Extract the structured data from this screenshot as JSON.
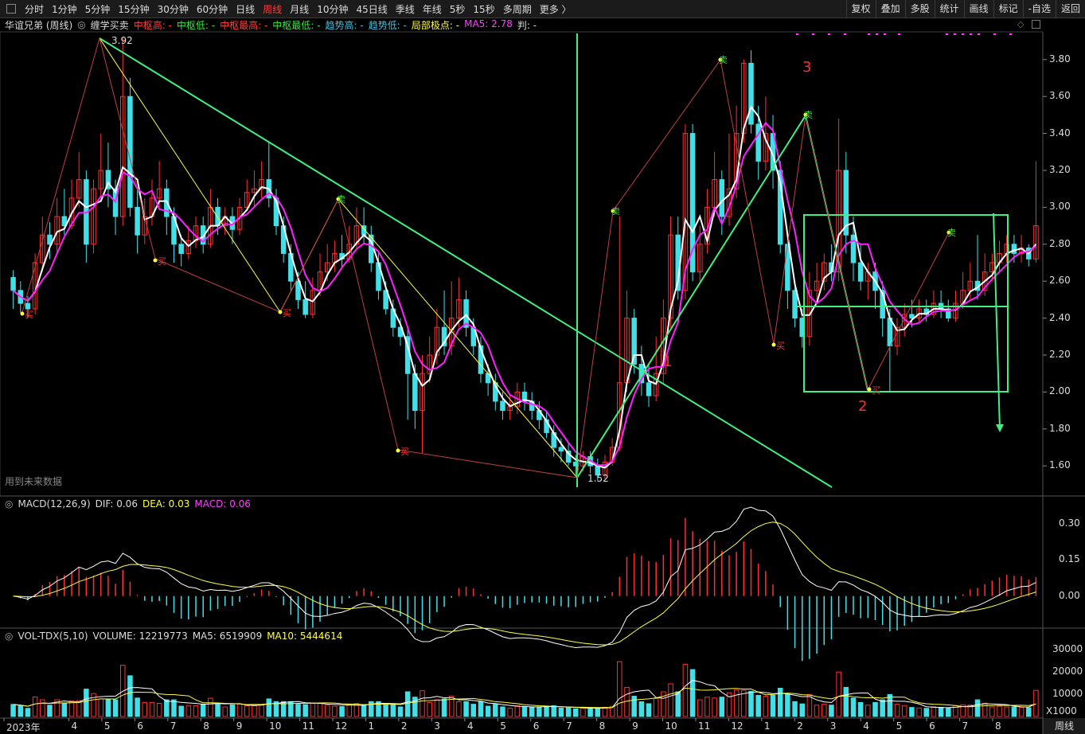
{
  "periods": [
    "分时",
    "1分钟",
    "5分钟",
    "15分钟",
    "30分钟",
    "60分钟",
    "日线",
    "周线",
    "月线",
    "10分钟",
    "45日线",
    "季线",
    "年线",
    "5秒",
    "15秒",
    "多周期",
    "更多 〉"
  ],
  "active_period": "周线",
  "tools": [
    "复权",
    "叠加",
    "多股",
    "统计",
    "画线",
    "标记",
    "-自选",
    "返回"
  ],
  "main_legend": {
    "title": "华谊兄弟 (周线)",
    "indicator": "缠学买卖",
    "items": [
      {
        "text": "中枢高: -",
        "color": "#ff4040"
      },
      {
        "text": "中枢低: -",
        "color": "#40e040"
      },
      {
        "text": "中枢最高: -",
        "color": "#ff4040"
      },
      {
        "text": "中枢最低: -",
        "color": "#40e040"
      },
      {
        "text": "趋势高: -",
        "color": "#40c0e0"
      },
      {
        "text": "趋势低: -",
        "color": "#40c0e0"
      },
      {
        "text": "局部极点: -",
        "color": "#ffff40"
      },
      {
        "text": "MA5: 2.78",
        "color": "#ff40ff"
      },
      {
        "text": "判: -",
        "color": "#dcdcdc"
      }
    ]
  },
  "macd_legend": {
    "title": "MACD(12,26,9)",
    "items": [
      {
        "text": "DIF: 0.06",
        "color": "#dcdcdc"
      },
      {
        "text": "DEA: 0.03",
        "color": "#ffff40"
      },
      {
        "text": "MACD: 0.06",
        "color": "#ff40ff"
      }
    ]
  },
  "vol_legend": {
    "title": "VOL-TDX(5,10)",
    "items": [
      {
        "text": "VOLUME: 12219773",
        "color": "#dcdcdc"
      },
      {
        "text": "MA5: 6519909",
        "color": "#dcdcdc"
      },
      {
        "text": "MA10: 5444614",
        "color": "#ffff40"
      }
    ]
  },
  "watermark": "用到未来数据",
  "price_axis": [
    "3.80",
    "3.60",
    "3.40",
    "3.20",
    "3.00",
    "2.80",
    "2.60",
    "2.40",
    "2.20",
    "2.00",
    "1.80",
    "1.60"
  ],
  "macd_axis": [
    "0.30",
    "0.15",
    "0.00"
  ],
  "vol_axis": [
    "30000",
    "20000",
    "10000"
  ],
  "vol_unit": "X1000",
  "x_labels": [
    "2023年",
    "4",
    "5",
    "6",
    "7",
    "8",
    "9",
    "10",
    "11",
    "12",
    "1",
    "2",
    "3",
    "4",
    "5",
    "6",
    "7",
    "8",
    "9",
    "10",
    "11",
    "12",
    "1",
    "2",
    "3",
    "4",
    "5",
    "6",
    "7",
    "8"
  ],
  "annotations": {
    "high": "3.92",
    "low": "1.52",
    "n1": "1",
    "n2": "2",
    "n3": "3",
    "buy": "买",
    "sell": "卖"
  },
  "bottom_button": "周线",
  "colors": {
    "up": "#ff3030",
    "down": "#40e0e8",
    "ma_white": "#ffffff",
    "ma_magenta": "#ff20ff",
    "trend": "#40f080",
    "signal": "#ffff40"
  },
  "chart_data": {
    "type": "candlestick",
    "price_range": [
      1.45,
      3.95
    ],
    "candles": [
      [
        2.62,
        2.55,
        2.66,
        2.45
      ],
      [
        2.55,
        2.48,
        2.6,
        2.43
      ],
      [
        2.48,
        2.45,
        2.52,
        2.4
      ],
      [
        2.45,
        2.7,
        2.75,
        2.42
      ],
      [
        2.7,
        2.85,
        2.95,
        2.65
      ],
      [
        2.85,
        2.8,
        2.92,
        2.72
      ],
      [
        2.8,
        2.95,
        3.05,
        2.75
      ],
      [
        2.95,
        2.9,
        3.1,
        2.85
      ],
      [
        2.9,
        3.05,
        3.15,
        2.88
      ],
      [
        3.05,
        3.15,
        3.3,
        3.0
      ],
      [
        3.15,
        2.8,
        3.2,
        2.7
      ],
      [
        2.8,
        3.1,
        3.15,
        2.75
      ],
      [
        3.1,
        3.2,
        3.4,
        3.05
      ],
      [
        3.2,
        3.1,
        3.35,
        3.0
      ],
      [
        3.1,
        2.95,
        3.15,
        2.85
      ],
      [
        2.95,
        3.6,
        3.92,
        2.9
      ],
      [
        3.6,
        3.0,
        3.7,
        2.95
      ],
      [
        3.0,
        2.85,
        3.1,
        2.75
      ],
      [
        2.85,
        2.95,
        3.05,
        2.8
      ],
      [
        2.95,
        3.05,
        3.15,
        2.9
      ],
      [
        3.05,
        3.1,
        3.25,
        3.0
      ],
      [
        3.1,
        2.95,
        3.15,
        2.85
      ],
      [
        2.95,
        2.8,
        3.0,
        2.7
      ],
      [
        2.8,
        2.75,
        2.85,
        2.68
      ],
      [
        2.75,
        2.82,
        2.9,
        2.72
      ],
      [
        2.82,
        2.9,
        2.95,
        2.78
      ],
      [
        2.9,
        2.8,
        2.95,
        2.75
      ],
      [
        2.8,
        3.0,
        3.1,
        2.78
      ],
      [
        3.0,
        2.9,
        3.05,
        2.85
      ],
      [
        2.9,
        2.95,
        3.0,
        2.85
      ],
      [
        2.95,
        2.88,
        3.0,
        2.8
      ],
      [
        2.88,
        3.0,
        3.05,
        2.85
      ],
      [
        3.0,
        3.08,
        3.15,
        2.98
      ],
      [
        3.08,
        3.1,
        3.2,
        3.0
      ],
      [
        3.1,
        3.15,
        3.25,
        3.05
      ],
      [
        3.15,
        3.05,
        3.35,
        3.0
      ],
      [
        3.05,
        2.9,
        3.1,
        2.85
      ],
      [
        2.9,
        2.75,
        2.95,
        2.7
      ],
      [
        2.75,
        2.6,
        2.8,
        2.55
      ],
      [
        2.6,
        2.5,
        2.65,
        2.45
      ],
      [
        2.5,
        2.42,
        2.6,
        2.4
      ],
      [
        2.42,
        2.55,
        2.62,
        2.4
      ],
      [
        2.55,
        2.65,
        2.75,
        2.52
      ],
      [
        2.65,
        2.7,
        2.8,
        2.6
      ],
      [
        2.7,
        2.75,
        2.82,
        2.65
      ],
      [
        2.75,
        2.72,
        2.85,
        2.68
      ],
      [
        2.72,
        2.8,
        2.9,
        2.7
      ],
      [
        2.8,
        2.9,
        3.0,
        2.78
      ],
      [
        2.9,
        2.85,
        3.0,
        2.8
      ],
      [
        2.85,
        2.7,
        2.9,
        2.65
      ],
      [
        2.7,
        2.55,
        2.75,
        2.5
      ],
      [
        2.55,
        2.45,
        2.6,
        2.42
      ],
      [
        2.45,
        2.35,
        2.5,
        2.3
      ],
      [
        2.35,
        2.3,
        2.4,
        2.25
      ],
      [
        2.3,
        2.1,
        2.35,
        1.85
      ],
      [
        2.1,
        1.9,
        2.15,
        1.8
      ],
      [
        1.9,
        2.1,
        2.2,
        1.67
      ],
      [
        2.1,
        2.2,
        2.3,
        2.05
      ],
      [
        2.2,
        2.35,
        2.45,
        2.15
      ],
      [
        2.35,
        2.25,
        2.55,
        2.2
      ],
      [
        2.25,
        2.4,
        2.6,
        2.2
      ],
      [
        2.4,
        2.5,
        2.62,
        2.35
      ],
      [
        2.5,
        2.35,
        2.55,
        2.3
      ],
      [
        2.35,
        2.25,
        2.4,
        2.2
      ],
      [
        2.25,
        2.1,
        2.3,
        2.05
      ],
      [
        2.1,
        2.05,
        2.15,
        1.98
      ],
      [
        2.05,
        1.95,
        2.1,
        1.9
      ],
      [
        1.95,
        1.9,
        2.0,
        1.85
      ],
      [
        1.9,
        1.92,
        1.98,
        1.85
      ],
      [
        1.92,
        2.0,
        2.05,
        1.88
      ],
      [
        2.0,
        1.95,
        2.05,
        1.9
      ],
      [
        1.95,
        1.9,
        2.0,
        1.85
      ],
      [
        1.9,
        1.85,
        1.95,
        1.8
      ],
      [
        1.85,
        1.78,
        1.9,
        1.75
      ],
      [
        1.78,
        1.7,
        1.82,
        1.65
      ],
      [
        1.7,
        1.68,
        1.75,
        1.62
      ],
      [
        1.68,
        1.62,
        1.72,
        1.6
      ],
      [
        1.62,
        1.6,
        1.66,
        1.55
      ],
      [
        1.6,
        1.65,
        1.68,
        1.57
      ],
      [
        1.65,
        1.6,
        1.68,
        1.56
      ],
      [
        1.6,
        1.55,
        1.64,
        1.52
      ],
      [
        1.55,
        1.62,
        1.66,
        1.53
      ],
      [
        1.62,
        1.7,
        1.75,
        1.6
      ],
      [
        1.7,
        2.05,
        2.95,
        1.68
      ],
      [
        2.05,
        2.4,
        2.55,
        2.0
      ],
      [
        2.4,
        2.15,
        2.45,
        2.1
      ],
      [
        2.15,
        2.05,
        2.25,
        1.98
      ],
      [
        2.05,
        1.98,
        2.15,
        1.92
      ],
      [
        1.98,
        2.1,
        2.3,
        1.95
      ],
      [
        2.1,
        2.4,
        2.5,
        2.05
      ],
      [
        2.4,
        2.85,
        2.95,
        2.35
      ],
      [
        2.85,
        2.55,
        2.95,
        2.5
      ],
      [
        2.55,
        3.4,
        3.45,
        2.5
      ],
      [
        3.4,
        2.65,
        3.45,
        2.6
      ],
      [
        2.65,
        2.8,
        2.9,
        2.6
      ],
      [
        2.8,
        3.0,
        3.1,
        2.75
      ],
      [
        3.0,
        3.15,
        3.3,
        2.95
      ],
      [
        3.15,
        2.95,
        3.2,
        2.85
      ],
      [
        2.95,
        3.1,
        3.4,
        2.9
      ],
      [
        3.1,
        3.4,
        3.55,
        3.05
      ],
      [
        3.4,
        3.78,
        3.8,
        3.35
      ],
      [
        3.78,
        3.45,
        3.85,
        3.4
      ],
      [
        3.45,
        3.25,
        3.55,
        3.15
      ],
      [
        3.25,
        3.4,
        3.6,
        3.2
      ],
      [
        3.4,
        3.2,
        3.5,
        3.1
      ],
      [
        3.2,
        2.8,
        3.25,
        2.75
      ],
      [
        2.8,
        2.55,
        2.85,
        2.45
      ],
      [
        2.55,
        2.4,
        2.6,
        2.35
      ],
      [
        2.4,
        2.3,
        2.45,
        2.24
      ],
      [
        2.3,
        2.55,
        2.65,
        2.25
      ],
      [
        2.55,
        2.6,
        2.7,
        2.5
      ],
      [
        2.6,
        2.7,
        2.75,
        2.55
      ],
      [
        2.7,
        2.65,
        2.8,
        2.6
      ],
      [
        2.65,
        3.2,
        3.48,
        2.6
      ],
      [
        3.2,
        2.85,
        3.3,
        2.75
      ],
      [
        2.85,
        2.7,
        2.95,
        2.6
      ],
      [
        2.7,
        2.6,
        2.8,
        2.55
      ],
      [
        2.6,
        2.65,
        2.7,
        2.5
      ],
      [
        2.65,
        2.55,
        2.7,
        2.45
      ],
      [
        2.55,
        2.4,
        2.6,
        2.3
      ],
      [
        2.4,
        2.25,
        2.45,
        2.0
      ],
      [
        2.25,
        2.35,
        2.4,
        2.2
      ],
      [
        2.35,
        2.42,
        2.48,
        2.3
      ],
      [
        2.42,
        2.4,
        2.5,
        2.35
      ],
      [
        2.4,
        2.45,
        2.5,
        2.38
      ],
      [
        2.45,
        2.42,
        2.5,
        2.38
      ],
      [
        2.42,
        2.48,
        2.55,
        2.4
      ],
      [
        2.48,
        2.45,
        2.55,
        2.4
      ],
      [
        2.45,
        2.4,
        2.5,
        2.38
      ],
      [
        2.4,
        2.48,
        2.55,
        2.38
      ],
      [
        2.48,
        2.55,
        2.65,
        2.45
      ],
      [
        2.55,
        2.6,
        2.7,
        2.5
      ],
      [
        2.6,
        2.55,
        2.85,
        2.5
      ],
      [
        2.55,
        2.65,
        2.75,
        2.52
      ],
      [
        2.65,
        2.7,
        2.75,
        2.6
      ],
      [
        2.7,
        2.75,
        2.82,
        2.65
      ],
      [
        2.75,
        2.8,
        2.85,
        2.7
      ],
      [
        2.8,
        2.75,
        2.85,
        2.7
      ],
      [
        2.75,
        2.78,
        2.85,
        2.7
      ],
      [
        2.78,
        2.72,
        2.8,
        2.68
      ],
      [
        2.72,
        2.9,
        3.25,
        2.7
      ]
    ]
  }
}
